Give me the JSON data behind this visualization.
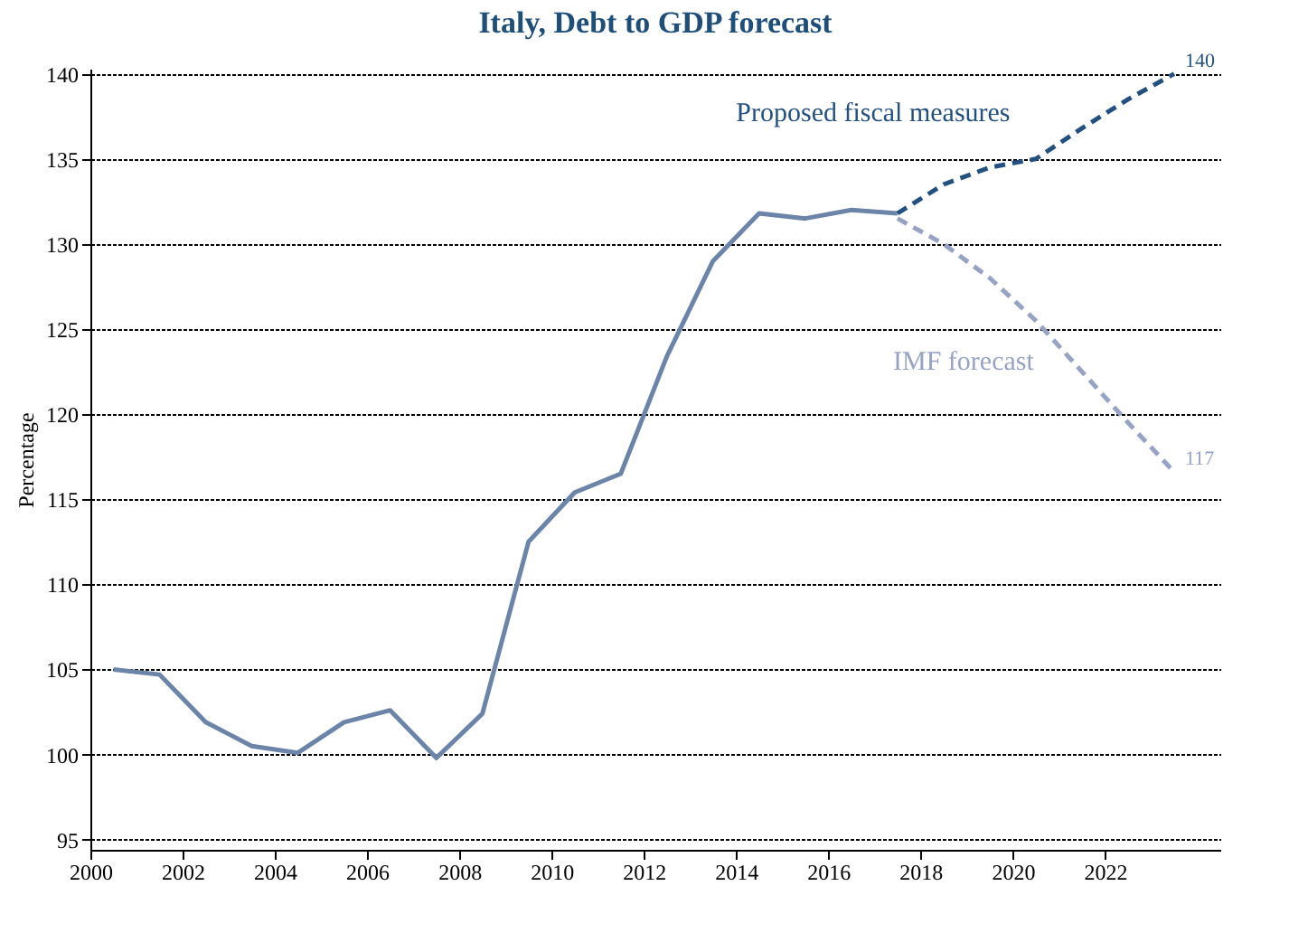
{
  "chart_data": {
    "type": "line",
    "title": "Italy, Debt to GDP forecast",
    "ylabel": "Percentage",
    "xlim": [
      2000,
      2024.5
    ],
    "xticks": [
      2000,
      2002,
      2004,
      2006,
      2008,
      2010,
      2012,
      2014,
      2016,
      2018,
      2020,
      2022
    ],
    "ylim": [
      94.4,
      140.3
    ],
    "yticks": [
      95,
      100,
      105,
      110,
      115,
      120,
      125,
      130,
      135,
      140
    ],
    "grid": "y",
    "marker": "none",
    "series": [
      {
        "color": "#6b84a8",
        "line_style": "solid",
        "x": [
          2000.5,
          2001.5,
          2002.5,
          2003.5,
          2004.5,
          2005.5,
          2006.5,
          2007.5,
          2008.5,
          2009.5,
          2010.5,
          2011.5,
          2012.5,
          2013.5,
          2014.5,
          2015.5,
          2016.5,
          2017.5
        ],
        "values": [
          105.0,
          104.7,
          101.9,
          100.5,
          100.1,
          101.9,
          102.6,
          99.8,
          102.4,
          112.5,
          115.4,
          116.5,
          123.4,
          129.0,
          131.8,
          131.5,
          132.0,
          131.8
        ]
      },
      {
        "name": "Proposed fiscal measures",
        "color": "#24507f",
        "line_style": "dashed",
        "x": [
          2017.5,
          2018.5,
          2019.5,
          2020.5,
          2021.5,
          2022.5,
          2023.5
        ],
        "values": [
          131.8,
          133.5,
          134.5,
          135.0,
          136.8,
          138.5,
          140.0
        ],
        "value_labels": [
          null,
          null,
          null,
          null,
          null,
          null,
          "140"
        ]
      },
      {
        "name": "IMF forecast",
        "color": "#97a3c3",
        "line_style": "dashed",
        "x": [
          2017.5,
          2018.5,
          2019.5,
          2020.5,
          2021.5,
          2022.5,
          2023.5
        ],
        "values": [
          131.5,
          130.0,
          128.0,
          125.5,
          122.5,
          119.5,
          116.6
        ],
        "value_labels": [
          null,
          null,
          null,
          null,
          null,
          null,
          "117"
        ]
      }
    ]
  }
}
